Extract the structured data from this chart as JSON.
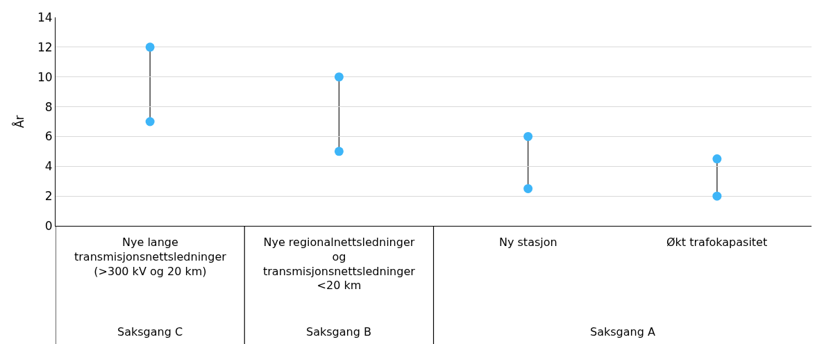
{
  "chart_data": {
    "type": "scatter",
    "ylabel": "År",
    "categories": [
      "Nye lange transmisjonsnettsledninger (>300 kV og 20 km)",
      "Nye regionalnettsledninger og transmisjonsnettsledninger <20 km",
      "Ny stasjon",
      "Økt trafokapasitet"
    ],
    "series": [
      {
        "color": "#3db5f8",
        "values": [
          7,
          5,
          2.5,
          2
        ]
      },
      {
        "color": "#3db5f8",
        "values": [
          12,
          10,
          6,
          4.5
        ]
      }
    ],
    "annotations": [
      "Saksgang C",
      "Saksgang B",
      "Saksgang A"
    ],
    "ylim": [
      0,
      14
    ],
    "yticks": [
      0,
      2,
      4,
      6,
      8,
      10,
      12,
      14
    ],
    "grid": "y",
    "marker": "circle"
  }
}
